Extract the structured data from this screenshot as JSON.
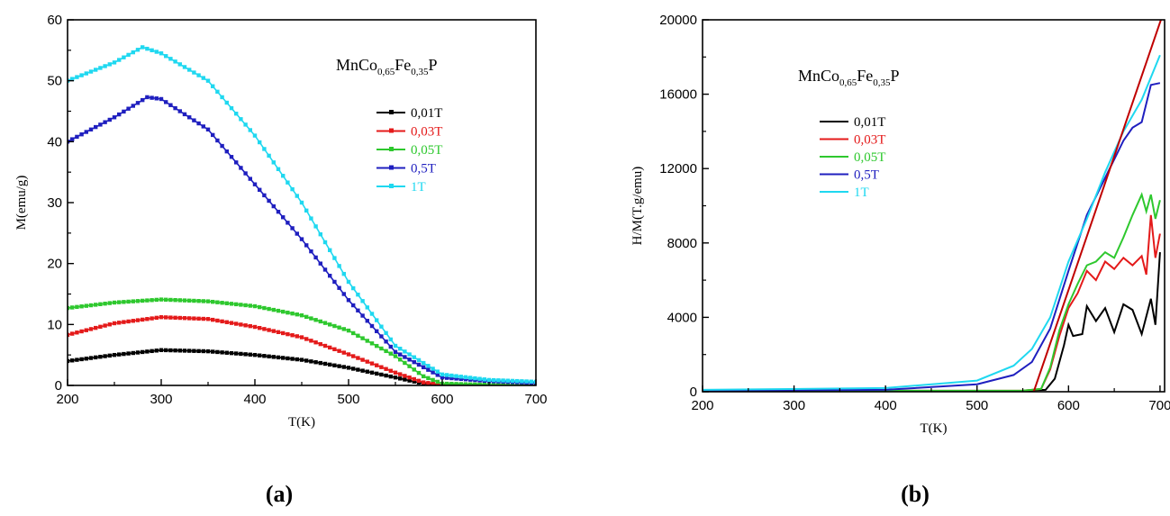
{
  "charts": [
    {
      "type": "line",
      "panel_label": "(a)",
      "xlabel": "T(K)",
      "ylabel": "M(emu/g)",
      "xlim": [
        200,
        700
      ],
      "ylim": [
        0,
        60
      ],
      "xticks": [
        200,
        300,
        400,
        500,
        600,
        700
      ],
      "yticks": [
        0,
        10,
        20,
        30,
        40,
        50,
        60
      ],
      "markers": true,
      "compound": {
        "prefix": "MnCo",
        "sub1": "0,65",
        "mid": "Fe",
        "sub2": "0,35",
        "suffix": "P"
      },
      "legend_position": "upper-right",
      "series": [
        {
          "name": "0,01T",
          "color": "#000000",
          "points": [
            [
              200,
              4.0
            ],
            [
              250,
              5.0
            ],
            [
              300,
              5.8
            ],
            [
              350,
              5.6
            ],
            [
              400,
              5.0
            ],
            [
              450,
              4.2
            ],
            [
              500,
              2.9
            ],
            [
              550,
              1.3
            ],
            [
              580,
              0.3
            ],
            [
              600,
              0.1
            ],
            [
              650,
              0.0
            ],
            [
              700,
              0.0
            ]
          ]
        },
        {
          "name": "0,03T",
          "color": "#e41a1a",
          "points": [
            [
              200,
              8.3
            ],
            [
              250,
              10.2
            ],
            [
              300,
              11.2
            ],
            [
              350,
              10.9
            ],
            [
              400,
              9.6
            ],
            [
              450,
              7.9
            ],
            [
              500,
              5.1
            ],
            [
              550,
              2.1
            ],
            [
              580,
              0.5
            ],
            [
              600,
              0.1
            ],
            [
              650,
              0.0
            ],
            [
              700,
              0.0
            ]
          ]
        },
        {
          "name": "0,05T",
          "color": "#2ec82e",
          "points": [
            [
              200,
              12.7
            ],
            [
              250,
              13.6
            ],
            [
              300,
              14.1
            ],
            [
              350,
              13.8
            ],
            [
              400,
              13.0
            ],
            [
              450,
              11.5
            ],
            [
              500,
              9.0
            ],
            [
              550,
              4.8
            ],
            [
              580,
              1.5
            ],
            [
              600,
              0.3
            ],
            [
              650,
              0.1
            ],
            [
              700,
              0.0
            ]
          ]
        },
        {
          "name": "0,5T",
          "color": "#1f1fbf",
          "points": [
            [
              200,
              40.0
            ],
            [
              250,
              44.0
            ],
            [
              285,
              47.3
            ],
            [
              300,
              47.0
            ],
            [
              350,
              42.0
            ],
            [
              400,
              33.0
            ],
            [
              450,
              24.0
            ],
            [
              500,
              14.0
            ],
            [
              550,
              5.5
            ],
            [
              600,
              1.3
            ],
            [
              650,
              0.7
            ],
            [
              700,
              0.4
            ]
          ]
        },
        {
          "name": "1T",
          "color": "#1fd8f0",
          "points": [
            [
              200,
              50.0
            ],
            [
              250,
              53.0
            ],
            [
              280,
              55.5
            ],
            [
              300,
              54.5
            ],
            [
              350,
              50.0
            ],
            [
              400,
              41.0
            ],
            [
              450,
              30.0
            ],
            [
              500,
              17.0
            ],
            [
              550,
              6.5
            ],
            [
              600,
              1.8
            ],
            [
              650,
              0.9
            ],
            [
              700,
              0.6
            ]
          ]
        }
      ]
    },
    {
      "type": "line",
      "panel_label": "(b)",
      "xlabel": "T(K)",
      "ylabel": "H/M(T.g/emu)",
      "xlim": [
        200,
        705
      ],
      "ylim": [
        0,
        20000
      ],
      "xticks": [
        200,
        300,
        400,
        500,
        600,
        700
      ],
      "yticks": [
        0,
        4000,
        8000,
        12000,
        16000,
        20000
      ],
      "markers": false,
      "compound": {
        "prefix": "MnCo",
        "sub1": "0,65",
        "mid": "Fe",
        "sub2": "0,35",
        "suffix": "P"
      },
      "legend_position": "upper-left",
      "series": [
        {
          "name": "0,01T",
          "color": "#000000",
          "points": [
            [
              200,
              50
            ],
            [
              550,
              50
            ],
            [
              575,
              100
            ],
            [
              585,
              700
            ],
            [
              595,
              2500
            ],
            [
              600,
              3600
            ],
            [
              605,
              3000
            ],
            [
              615,
              3100
            ],
            [
              620,
              4600
            ],
            [
              630,
              3800
            ],
            [
              640,
              4500
            ],
            [
              650,
              3200
            ],
            [
              660,
              4700
            ],
            [
              670,
              4400
            ],
            [
              680,
              3100
            ],
            [
              690,
              5000
            ],
            [
              695,
              3600
            ],
            [
              700,
              7500
            ]
          ]
        },
        {
          "name": "0,03T",
          "color": "#e41a1a",
          "points": [
            [
              200,
              50
            ],
            [
              550,
              60
            ],
            [
              570,
              150
            ],
            [
              580,
              1200
            ],
            [
              590,
              3000
            ],
            [
              600,
              4500
            ],
            [
              610,
              5300
            ],
            [
              620,
              6500
            ],
            [
              630,
              6000
            ],
            [
              640,
              7000
            ],
            [
              650,
              6600
            ],
            [
              660,
              7200
            ],
            [
              670,
              6800
            ],
            [
              680,
              7300
            ],
            [
              685,
              6300
            ],
            [
              690,
              9500
            ],
            [
              695,
              7200
            ],
            [
              700,
              8500
            ]
          ]
        },
        {
          "name": "0,05T",
          "color": "#2ec82e",
          "points": [
            [
              200,
              50
            ],
            [
              550,
              60
            ],
            [
              570,
              150
            ],
            [
              580,
              1300
            ],
            [
              590,
              3300
            ],
            [
              600,
              4700
            ],
            [
              610,
              5800
            ],
            [
              620,
              6800
            ],
            [
              630,
              7000
            ],
            [
              640,
              7500
            ],
            [
              650,
              7200
            ],
            [
              660,
              8300
            ],
            [
              670,
              9500
            ],
            [
              680,
              10600
            ],
            [
              685,
              9700
            ],
            [
              690,
              10600
            ],
            [
              695,
              9300
            ],
            [
              700,
              10300
            ]
          ]
        },
        {
          "name": "0,5T",
          "color": "#1f1fbf",
          "points": [
            [
              200,
              50
            ],
            [
              400,
              100
            ],
            [
              500,
              400
            ],
            [
              540,
              900
            ],
            [
              560,
              1600
            ],
            [
              580,
              3400
            ],
            [
              600,
              6500
            ],
            [
              620,
              9500
            ],
            [
              640,
              11500
            ],
            [
              660,
              13500
            ],
            [
              670,
              14200
            ],
            [
              680,
              14500
            ],
            [
              690,
              16500
            ],
            [
              700,
              16600
            ]
          ]
        },
        {
          "name": "1T",
          "color": "#1fd8f0",
          "points": [
            [
              200,
              100
            ],
            [
              400,
              200
            ],
            [
              500,
              600
            ],
            [
              540,
              1400
            ],
            [
              560,
              2300
            ],
            [
              580,
              4000
            ],
            [
              600,
              7000
            ],
            [
              620,
              9300
            ],
            [
              640,
              11800
            ],
            [
              660,
              14000
            ],
            [
              680,
              15700
            ],
            [
              700,
              18100
            ]
          ]
        },
        {
          "name": "",
          "color": "#c00000",
          "legend": false,
          "points": [
            [
              562,
              0
            ],
            [
              701,
              20000
            ]
          ]
        }
      ]
    }
  ]
}
